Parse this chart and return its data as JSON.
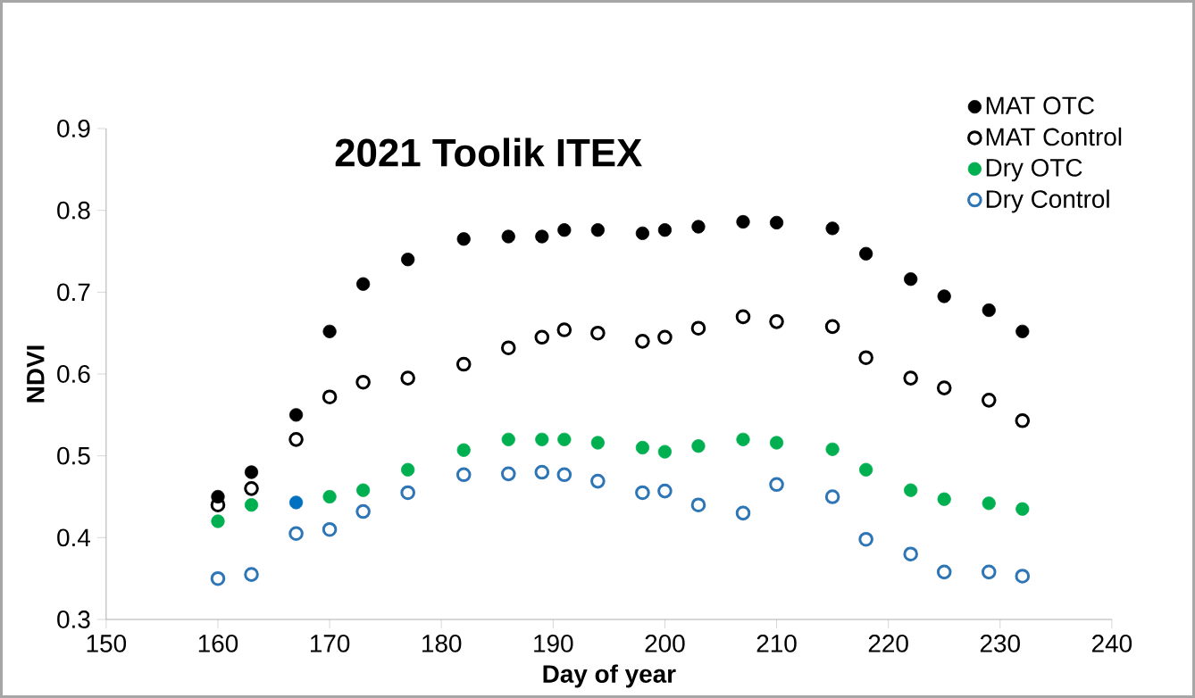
{
  "chart_data": {
    "type": "scatter",
    "title": "2021 Toolik ITEX",
    "xlabel": "Day of year",
    "ylabel": "NDVI",
    "x": [
      160,
      163,
      167,
      170,
      173,
      177,
      182,
      186,
      189,
      191,
      194,
      198,
      200,
      203,
      207,
      210,
      215,
      218,
      222,
      225,
      229,
      232
    ],
    "series": [
      {
        "name": "MAT OTC",
        "color": "#000000",
        "marker": "circle",
        "values": [
          0.45,
          0.48,
          0.55,
          0.652,
          0.71,
          0.74,
          0.765,
          0.768,
          0.768,
          0.776,
          0.776,
          0.772,
          0.776,
          0.78,
          0.786,
          0.785,
          0.778,
          0.747,
          0.716,
          0.695,
          0.678,
          0.652
        ]
      },
      {
        "name": "MAT Control",
        "color": "#000000",
        "marker": "open circle",
        "values": [
          0.44,
          0.46,
          0.52,
          0.572,
          0.59,
          0.595,
          0.612,
          0.632,
          0.645,
          0.654,
          0.65,
          0.64,
          0.645,
          0.656,
          0.67,
          0.664,
          0.658,
          0.62,
          0.595,
          0.583,
          0.568,
          0.543
        ]
      },
      {
        "name": "Dry OTC",
        "color": "#00b050",
        "marker": "circle",
        "colors": [
          "#00b050",
          "#00b050",
          "#0070c0",
          "#00b050",
          "#00b050",
          "#00b050",
          "#00b050",
          "#00b050",
          "#00b050",
          "#00b050",
          "#00b050",
          "#00b050",
          "#00b050",
          "#00b050",
          "#00b050",
          "#00b050",
          "#00b050",
          "#00b050",
          "#00b050",
          "#00b050",
          "#00b050",
          "#00b050"
        ],
        "values": [
          0.42,
          0.44,
          0.443,
          0.45,
          0.458,
          0.483,
          0.507,
          0.52,
          0.52,
          0.52,
          0.516,
          0.51,
          0.505,
          0.512,
          0.52,
          0.516,
          0.508,
          0.483,
          0.458,
          0.447,
          0.442,
          0.435
        ]
      },
      {
        "name": "Dry Control",
        "color": "#2e75b6",
        "marker": "open circle",
        "values": [
          0.35,
          0.355,
          0.405,
          0.41,
          0.432,
          0.455,
          0.477,
          0.478,
          0.48,
          0.477,
          0.469,
          0.455,
          0.457,
          0.44,
          0.43,
          0.465,
          0.45,
          0.398,
          0.38,
          0.358,
          0.358,
          0.353
        ]
      }
    ],
    "xlim": [
      150,
      240
    ],
    "xticks": [
      150,
      160,
      170,
      180,
      190,
      200,
      210,
      220,
      230,
      240
    ],
    "ylim": [
      0.3,
      0.9
    ],
    "yticks": [
      0.3,
      0.4,
      0.5,
      0.6,
      0.7,
      0.8,
      0.9
    ],
    "grid": false,
    "legend": "top right"
  }
}
